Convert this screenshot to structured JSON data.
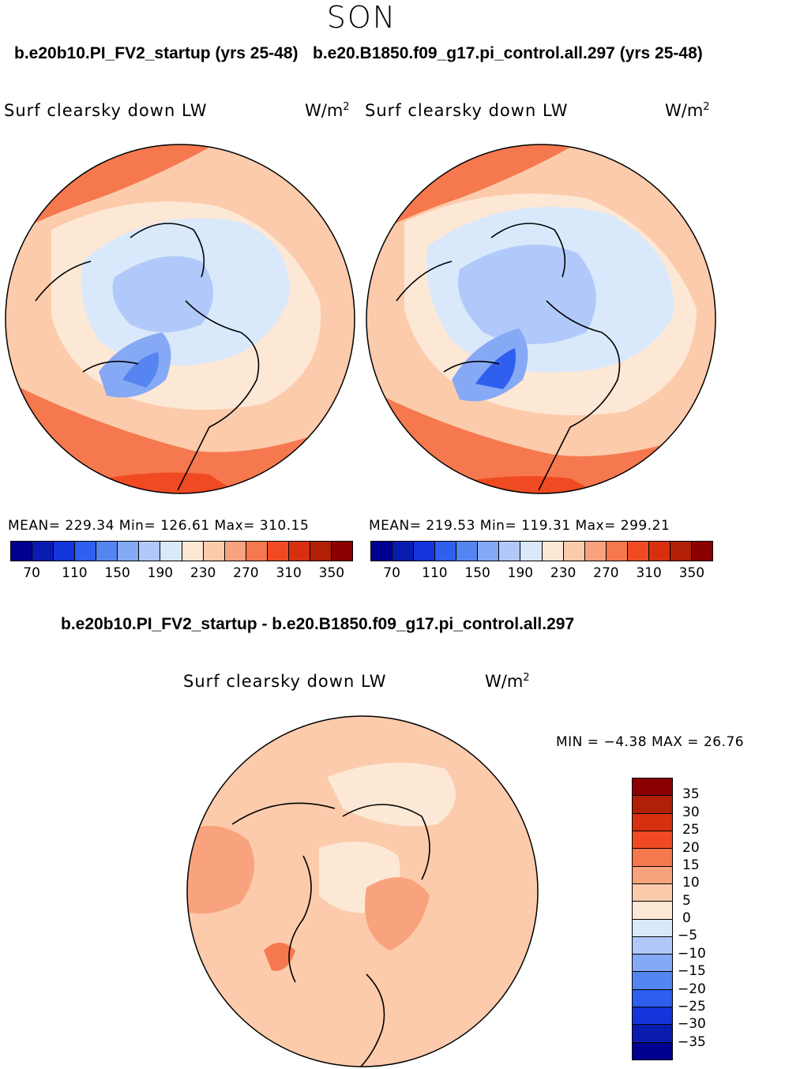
{
  "page": {
    "season": "SON"
  },
  "palette": {
    "abs": [
      "#000090",
      "#0a1cb0",
      "#1434dc",
      "#2e5fee",
      "#5585f0",
      "#86a9f5",
      "#b1c9fa",
      "#d9e9fb",
      "#fde8d6",
      "#fccbab",
      "#f9a27e",
      "#f6784f",
      "#f04a22",
      "#d7300f",
      "#b11f07",
      "#8a0000"
    ],
    "diff": [
      "#8a0000",
      "#b11f07",
      "#d7300f",
      "#f04a22",
      "#f6784f",
      "#f9a27e",
      "#fccbab",
      "#fde8d6",
      "#d9e9fb",
      "#b1c9fa",
      "#86a9f5",
      "#5585f0",
      "#2e5fee",
      "#1434dc",
      "#0a1cb0",
      "#000090"
    ]
  },
  "top_left": {
    "title": "b.e20b10.PI_FV2_startup (yrs 25-48)",
    "variable": "Surf clearsky down LW",
    "units_base": "W/m",
    "units_exp": "2",
    "stats": "MEAN= 229.34   Min= 126.61   Max= 310.15"
  },
  "top_right": {
    "title": "b.e20.B1850.f09_g17.pi_control.all.297 (yrs 25-48)",
    "variable": "Surf clearsky down LW",
    "units_base": "W/m",
    "units_exp": "2",
    "stats": "MEAN= 219.53   Min= 119.31   Max= 299.21"
  },
  "bottom": {
    "title": "b.e20b10.PI_FV2_startup - b.e20.B1850.f09_g17.pi_control.all.297",
    "variable": "Surf clearsky down LW",
    "units_base": "W/m",
    "units_exp": "2",
    "stats": "MIN =  −4.38 MAX =  26.76"
  },
  "chart_data": [
    {
      "type": "heatmap",
      "projection": "north-polar-stereographic",
      "title": "b.e20b10.PI_FV2_startup (yrs 25-48)",
      "variable": "Surf clearsky down LW",
      "units": "W/m2",
      "mean": 229.34,
      "min": 126.61,
      "max": 310.15,
      "colorbar_ticks": [
        "70",
        "110",
        "150",
        "190",
        "230",
        "270",
        "310",
        "350"
      ],
      "colorbar_range": [
        50,
        370
      ],
      "colorbar_interval": 20
    },
    {
      "type": "heatmap",
      "projection": "north-polar-stereographic",
      "title": "b.e20.B1850.f09_g17.pi_control.all.297 (yrs 25-48)",
      "variable": "Surf clearsky down LW",
      "units": "W/m2",
      "mean": 219.53,
      "min": 119.31,
      "max": 299.21,
      "colorbar_ticks": [
        "70",
        "110",
        "150",
        "190",
        "230",
        "270",
        "310",
        "350"
      ],
      "colorbar_range": [
        50,
        370
      ],
      "colorbar_interval": 20
    },
    {
      "type": "heatmap",
      "projection": "north-polar-stereographic",
      "title": "b.e20b10.PI_FV2_startup - b.e20.B1850.f09_g17.pi_control.all.297",
      "variable": "Surf clearsky down LW",
      "units": "W/m2",
      "min": -4.38,
      "max": 26.76,
      "colorbar_ticks": [
        "35",
        "30",
        "25",
        "20",
        "15",
        "10",
        "5",
        "0",
        "−5",
        "−10",
        "−15",
        "−20",
        "−25",
        "−30",
        "−35"
      ],
      "colorbar_interval": 5
    }
  ]
}
